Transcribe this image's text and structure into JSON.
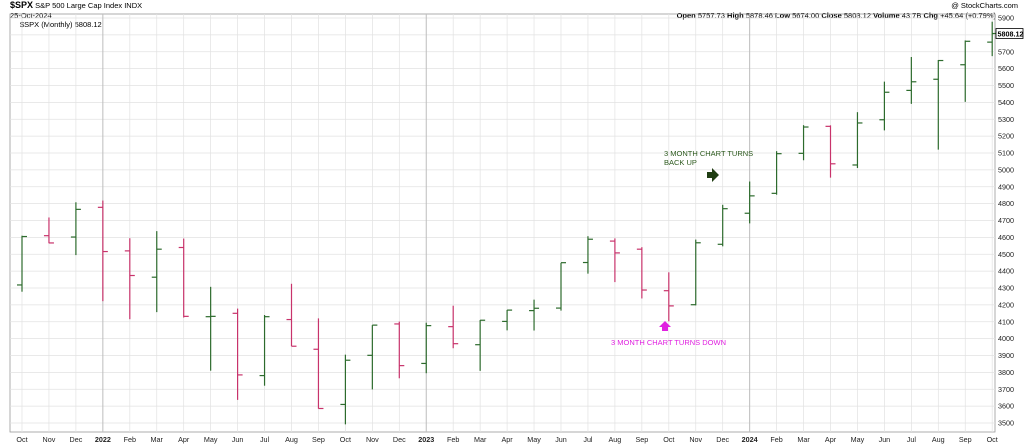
{
  "header": {
    "symbol": "$SPX",
    "name": "S&P 500 Large Cap Index",
    "exchange": "INDX",
    "date": "25-Oct-2024",
    "credit": "@ StockCharts.com",
    "legend": "$SPX (Monthly) 5808.12",
    "quote": {
      "open_label": "Open",
      "open": "5757.73",
      "high_label": "High",
      "high": "5878.46",
      "low_label": "Low",
      "low": "5674.00",
      "close_label": "Close",
      "close": "5808.12",
      "volume_label": "Volume",
      "volume": "43.7B",
      "chg_label": "Chg",
      "chg": "+45.64 (+0.79%)"
    },
    "last_price_tag": "5808.12"
  },
  "annotations": {
    "up": "3 MONTH CHART TURNS BACK UP",
    "up_line1": "3 MONTH CHART TURNS",
    "up_line2": "BACK UP",
    "down": "3 MONTH CHART TURNS DOWN"
  },
  "colors": {
    "up": "#2d6b2d",
    "down": "#c8336b",
    "grid": "#e2e2e2",
    "annot_up": "#2d5a1e",
    "annot_down": "#e020e0"
  },
  "chart_data": {
    "type": "ohlc",
    "title": "$SPX (Monthly)",
    "y_range": [
      3500,
      5900
    ],
    "y_ticks": [
      3500,
      3600,
      3700,
      3800,
      3900,
      4000,
      4100,
      4200,
      4300,
      4400,
      4500,
      4600,
      4700,
      4800,
      4900,
      5000,
      5100,
      5200,
      5300,
      5400,
      5500,
      5600,
      5700,
      5800,
      5900
    ],
    "x_labels": [
      "Oct",
      "Nov",
      "Dec",
      "2022",
      "Feb",
      "Mar",
      "Apr",
      "May",
      "Jun",
      "Jul",
      "Aug",
      "Sep",
      "Oct",
      "Nov",
      "Dec",
      "2023",
      "Feb",
      "Mar",
      "Apr",
      "May",
      "Jun",
      "Jul",
      "Aug",
      "Sep",
      "Oct",
      "Nov",
      "Dec",
      "2024",
      "Feb",
      "Mar",
      "Apr",
      "May",
      "Jun",
      "Jul",
      "Aug",
      "Sep",
      "Oct"
    ],
    "bars": [
      {
        "o": 4318,
        "h": 4610,
        "l": 4278,
        "c": 4605
      },
      {
        "o": 4610,
        "h": 4718,
        "l": 4565,
        "c": 4567
      },
      {
        "o": 4602,
        "h": 4808,
        "l": 4495,
        "c": 4766
      },
      {
        "o": 4778,
        "h": 4818,
        "l": 4222,
        "c": 4516
      },
      {
        "o": 4520,
        "h": 4595,
        "l": 4115,
        "c": 4374
      },
      {
        "o": 4364,
        "h": 4637,
        "l": 4157,
        "c": 4530
      },
      {
        "o": 4540,
        "h": 4593,
        "l": 4125,
        "c": 4132
      },
      {
        "o": 4130,
        "h": 4307,
        "l": 3810,
        "c": 4132
      },
      {
        "o": 4150,
        "h": 4178,
        "l": 3637,
        "c": 3785
      },
      {
        "o": 3781,
        "h": 4140,
        "l": 3721,
        "c": 4130
      },
      {
        "o": 4113,
        "h": 4325,
        "l": 3955,
        "c": 3955
      },
      {
        "o": 3937,
        "h": 4120,
        "l": 3585,
        "c": 3586
      },
      {
        "o": 3610,
        "h": 3905,
        "l": 3492,
        "c": 3872
      },
      {
        "o": 3901,
        "h": 4080,
        "l": 3699,
        "c": 4080
      },
      {
        "o": 4087,
        "h": 4101,
        "l": 3765,
        "c": 3840
      },
      {
        "o": 3853,
        "h": 4094,
        "l": 3795,
        "c": 4077
      },
      {
        "o": 4071,
        "h": 4195,
        "l": 3943,
        "c": 3970
      },
      {
        "o": 3964,
        "h": 4110,
        "l": 3809,
        "c": 4109
      },
      {
        "o": 4102,
        "h": 4170,
        "l": 4049,
        "c": 4169
      },
      {
        "o": 4166,
        "h": 4231,
        "l": 4048,
        "c": 4180
      },
      {
        "o": 4181,
        "h": 4449,
        "l": 4166,
        "c": 4450
      },
      {
        "o": 4451,
        "h": 4607,
        "l": 4385,
        "c": 4589
      },
      {
        "o": 4578,
        "h": 4594,
        "l": 4335,
        "c": 4508
      },
      {
        "o": 4530,
        "h": 4542,
        "l": 4238,
        "c": 4288
      },
      {
        "o": 4284,
        "h": 4393,
        "l": 4103,
        "c": 4194
      },
      {
        "o": 4201,
        "h": 4587,
        "l": 4197,
        "c": 4568
      },
      {
        "o": 4559,
        "h": 4793,
        "l": 4547,
        "c": 4770
      },
      {
        "o": 4743,
        "h": 4931,
        "l": 4683,
        "c": 4846
      },
      {
        "o": 4861,
        "h": 5111,
        "l": 4853,
        "c": 5096
      },
      {
        "o": 5098,
        "h": 5265,
        "l": 5057,
        "c": 5254
      },
      {
        "o": 5258,
        "h": 5264,
        "l": 4954,
        "c": 5036
      },
      {
        "o": 5029,
        "h": 5342,
        "l": 5011,
        "c": 5278
      },
      {
        "o": 5297,
        "h": 5523,
        "l": 5234,
        "c": 5460
      },
      {
        "o": 5471,
        "h": 5669,
        "l": 5391,
        "c": 5522
      },
      {
        "o": 5537,
        "h": 5651,
        "l": 5120,
        "c": 5648
      },
      {
        "o": 5623,
        "h": 5767,
        "l": 5403,
        "c": 5762
      },
      {
        "o": 5757,
        "h": 5878,
        "l": 5674,
        "c": 5808
      }
    ]
  }
}
